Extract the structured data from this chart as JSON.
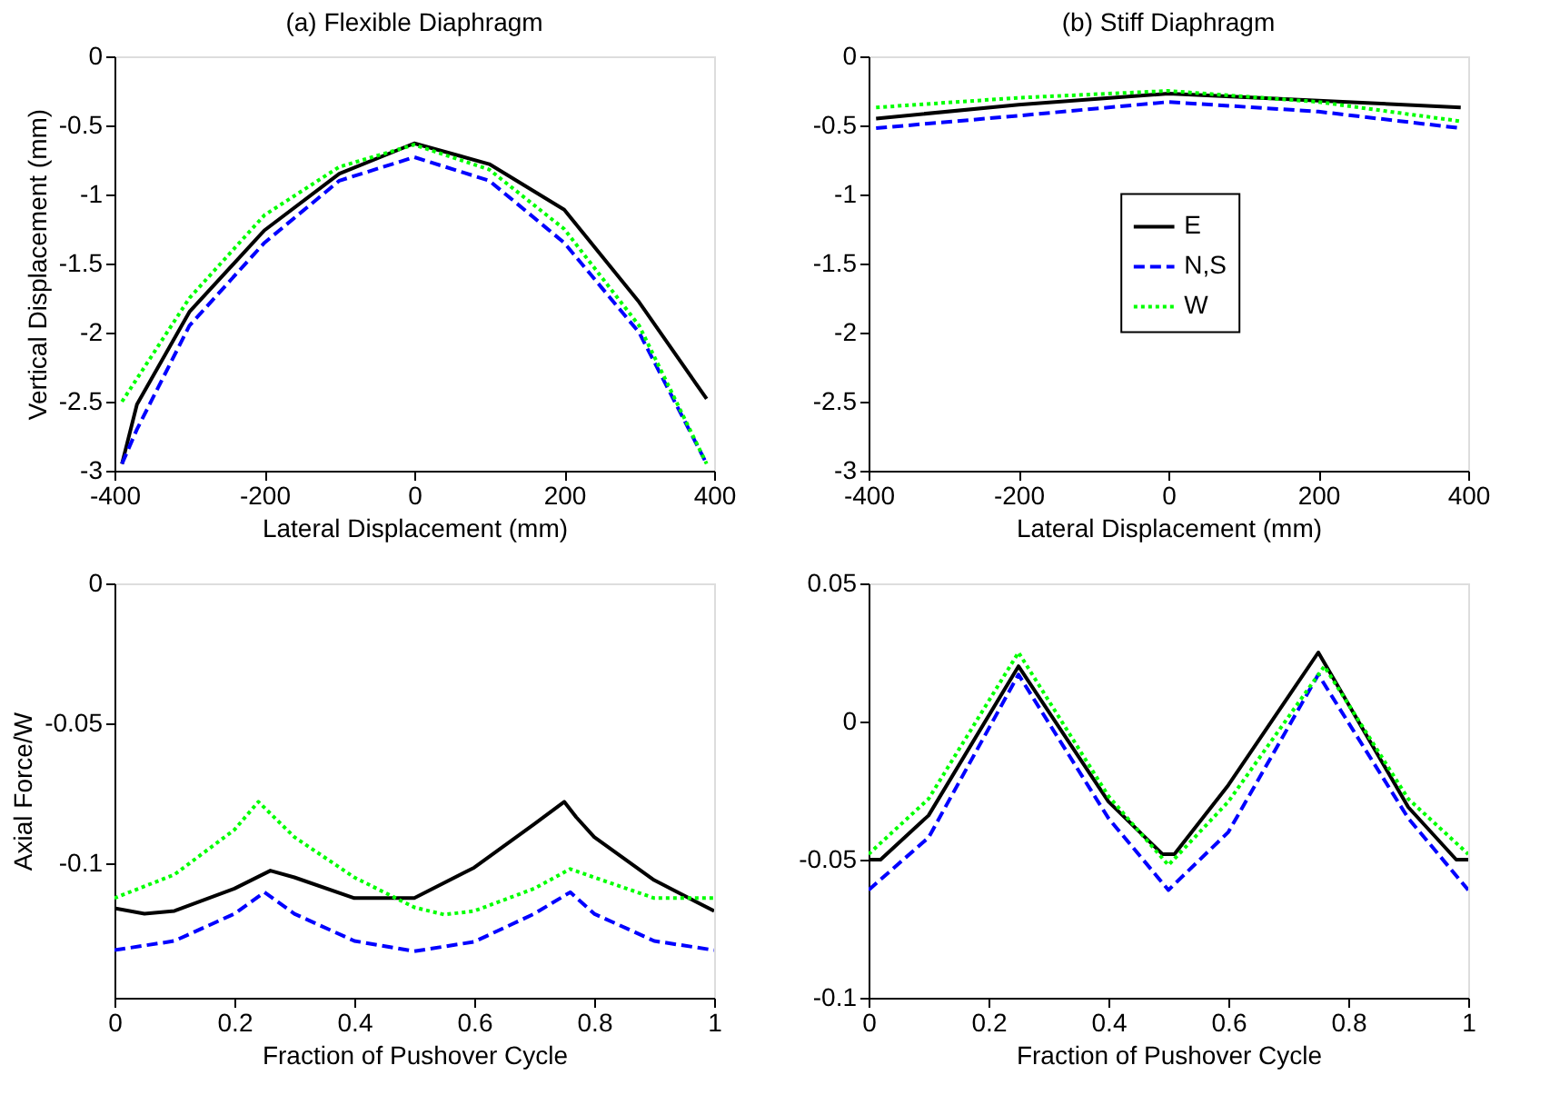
{
  "chart_data": [
    {
      "type": "line",
      "title": "(a) Flexible Diaphragm",
      "xlabel": "Lateral Displacement (mm)",
      "ylabel": "Vertical Displacement (mm)",
      "xlim": [
        -400,
        400
      ],
      "ylim": [
        -3,
        0
      ],
      "xticks": [
        -400,
        -200,
        0,
        200,
        400
      ],
      "yticks": [
        -3,
        -2.5,
        -2,
        -1.5,
        -1,
        -0.5,
        0
      ],
      "grid": false,
      "legend": false,
      "series": [
        {
          "color": "#000000",
          "line_style": "solid",
          "x": [
            -390,
            -370,
            -300,
            -200,
            -100,
            0,
            100,
            200,
            300,
            390
          ],
          "values": [
            -2.95,
            -2.52,
            -1.85,
            -1.26,
            -0.85,
            -0.63,
            -0.78,
            -1.11,
            -1.78,
            -2.48
          ]
        },
        {
          "color": "#0000ff",
          "line_style": "dashed",
          "x": [
            -390,
            -370,
            -300,
            -200,
            -100,
            0,
            100,
            200,
            300,
            390
          ],
          "values": [
            -2.95,
            -2.7,
            -1.95,
            -1.35,
            -0.9,
            -0.73,
            -0.9,
            -1.35,
            -2.0,
            -2.95
          ]
        },
        {
          "color": "#00ff00",
          "line_style": "dotted",
          "x": [
            -390,
            -300,
            -200,
            -100,
            0,
            100,
            200,
            300,
            390
          ],
          "values": [
            -2.5,
            -1.75,
            -1.15,
            -0.8,
            -0.64,
            -0.82,
            -1.25,
            -1.95,
            -2.95
          ]
        }
      ]
    },
    {
      "type": "line",
      "title": "(b) Stiff Diaphragm",
      "xlabel": "Lateral Displacement (mm)",
      "xlim": [
        -400,
        400
      ],
      "ylim": [
        -3,
        0
      ],
      "xticks": [
        -400,
        -200,
        0,
        200,
        400
      ],
      "yticks": [
        -3,
        -2.5,
        -2,
        -1.5,
        -1,
        -0.5,
        0
      ],
      "grid": false,
      "legend": "right",
      "series": [
        {
          "name": "E",
          "color": "#000000",
          "line_style": "solid",
          "x": [
            -390,
            -200,
            0,
            200,
            390
          ],
          "values": [
            -0.45,
            -0.35,
            -0.27,
            -0.32,
            -0.37
          ]
        },
        {
          "name": "N,S",
          "color": "#0000ff",
          "line_style": "dashed",
          "x": [
            -390,
            -200,
            0,
            200,
            390
          ],
          "values": [
            -0.52,
            -0.43,
            -0.33,
            -0.4,
            -0.52
          ]
        },
        {
          "name": "W",
          "color": "#00ff00",
          "line_style": "dotted",
          "x": [
            -390,
            -200,
            0,
            200,
            390
          ],
          "values": [
            -0.37,
            -0.3,
            -0.25,
            -0.33,
            -0.47
          ]
        }
      ]
    },
    {
      "type": "line",
      "xlabel": "Fraction of Pushover Cycle",
      "ylabel": "Axial Force/W",
      "xlim": [
        0,
        1
      ],
      "ylim": [
        -0.148,
        0
      ],
      "xticks": [
        0,
        0.2,
        0.4,
        0.6,
        0.8,
        1
      ],
      "yticks": [
        -0.1,
        -0.05,
        0
      ],
      "grid": false,
      "legend": false,
      "series": [
        {
          "color": "#000000",
          "line_style": "solid",
          "x": [
            0,
            0.05,
            0.1,
            0.2,
            0.26,
            0.3,
            0.4,
            0.5,
            0.6,
            0.7,
            0.75,
            0.77,
            0.8,
            0.9,
            1.0
          ],
          "values": [
            -0.116,
            -0.118,
            -0.117,
            -0.109,
            -0.1026,
            -0.105,
            -0.1124,
            -0.1124,
            -0.1015,
            -0.086,
            -0.078,
            -0.0835,
            -0.0906,
            -0.106,
            -0.117
          ]
        },
        {
          "color": "#0000ff",
          "line_style": "dashed",
          "x": [
            0,
            0.1,
            0.2,
            0.25,
            0.3,
            0.4,
            0.5,
            0.6,
            0.7,
            0.76,
            0.8,
            0.9,
            1.0
          ],
          "values": [
            -0.131,
            -0.1277,
            -0.118,
            -0.1103,
            -0.118,
            -0.1277,
            -0.1314,
            -0.128,
            -0.118,
            -0.1103,
            -0.118,
            -0.1277,
            -0.131
          ]
        },
        {
          "color": "#00ff00",
          "line_style": "dotted",
          "x": [
            0,
            0.1,
            0.2,
            0.24,
            0.3,
            0.4,
            0.5,
            0.55,
            0.6,
            0.7,
            0.76,
            0.8,
            0.9,
            1.0
          ],
          "values": [
            -0.1124,
            -0.104,
            -0.088,
            -0.078,
            -0.0906,
            -0.105,
            -0.1157,
            -0.1183,
            -0.117,
            -0.109,
            -0.102,
            -0.105,
            -0.1124,
            -0.1124
          ]
        }
      ]
    },
    {
      "type": "line",
      "xlabel": "Fraction of Pushover Cycle",
      "xlim": [
        0,
        1
      ],
      "ylim": [
        -0.1,
        0.05
      ],
      "xticks": [
        0,
        0.2,
        0.4,
        0.6,
        0.8,
        1
      ],
      "yticks": [
        -0.1,
        -0.05,
        0,
        0.05
      ],
      "grid": false,
      "legend": false,
      "series": [
        {
          "color": "#000000",
          "line_style": "solid",
          "x": [
            0,
            0.02,
            0.1,
            0.25,
            0.4,
            0.49,
            0.51,
            0.6,
            0.75,
            0.9,
            0.98,
            1.0
          ],
          "values": [
            -0.05,
            -0.05,
            -0.034,
            0.02,
            -0.029,
            -0.048,
            -0.048,
            -0.023,
            0.025,
            -0.031,
            -0.05,
            -0.05
          ]
        },
        {
          "color": "#0000ff",
          "line_style": "dashed",
          "x": [
            0,
            0.1,
            0.25,
            0.4,
            0.5,
            0.6,
            0.75,
            0.9,
            1.0
          ],
          "values": [
            -0.061,
            -0.042,
            0.017,
            -0.035,
            -0.061,
            -0.04,
            0.017,
            -0.035,
            -0.061
          ]
        },
        {
          "color": "#00ff00",
          "line_style": "dotted",
          "x": [
            0,
            0.1,
            0.25,
            0.4,
            0.5,
            0.6,
            0.76,
            0.9,
            1.0
          ],
          "values": [
            -0.048,
            -0.028,
            0.025,
            -0.027,
            -0.052,
            -0.029,
            0.02,
            -0.028,
            -0.048
          ]
        }
      ]
    }
  ]
}
